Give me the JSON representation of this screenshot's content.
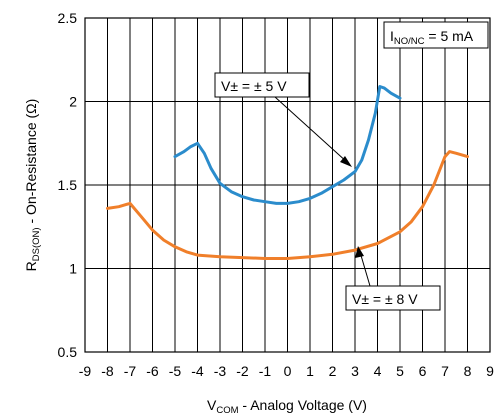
{
  "chart_data": {
    "type": "line",
    "title": "",
    "xlabel": {
      "main": "V",
      "sub": "COM",
      "rest": " - Analog Voltage (V)"
    },
    "ylabel": {
      "main": "R",
      "sub": "DS(ON)",
      "rest": " - On-Resistance (Ω)"
    },
    "xlim": [
      -9,
      9
    ],
    "ylim": [
      0.5,
      2.5
    ],
    "x_ticks": [
      -9,
      -8,
      -7,
      -6,
      -5,
      -4,
      -3,
      -2,
      -1,
      0,
      1,
      2,
      3,
      4,
      5,
      6,
      7,
      8,
      9
    ],
    "x_tick_labels": [
      "-9",
      "-8",
      "-7",
      "-6",
      "-5",
      "-4",
      "-3",
      "-2",
      "-1",
      "0",
      "1",
      "2",
      "3",
      "4",
      "5",
      "6",
      "7",
      "8",
      "9"
    ],
    "y_ticks": [
      0.5,
      1,
      1.5,
      2,
      2.5
    ],
    "y_tick_labels": [
      "0.5",
      "1",
      "1.5",
      "2",
      "2.5"
    ],
    "grid": true,
    "annotation_condition": {
      "main": "I",
      "sub": "NO/NC",
      "rest": " = 5 mA"
    },
    "series": [
      {
        "label": "V± = ± 5 V",
        "color": "#2b8ccc",
        "x": [
          -5,
          -4.6,
          -4.3,
          -4.0,
          -3.7,
          -3.4,
          -3.0,
          -2.5,
          -2.0,
          -1.5,
          -1.0,
          -0.5,
          0.0,
          0.5,
          1.0,
          1.5,
          2.0,
          2.5,
          3.0,
          3.3,
          3.6,
          3.9,
          4.1,
          4.3,
          4.6,
          5.0
        ],
        "y": [
          1.67,
          1.7,
          1.73,
          1.75,
          1.69,
          1.6,
          1.51,
          1.46,
          1.43,
          1.41,
          1.4,
          1.39,
          1.39,
          1.4,
          1.42,
          1.45,
          1.49,
          1.53,
          1.58,
          1.65,
          1.77,
          1.93,
          2.09,
          2.08,
          2.05,
          2.02
        ]
      },
      {
        "label": "V± = ± 8 V",
        "color": "#f07f2a",
        "x": [
          -8,
          -7.5,
          -7.0,
          -6.5,
          -6.0,
          -5.5,
          -5.0,
          -4.5,
          -4.0,
          -3.0,
          -2.0,
          -1.0,
          0.0,
          1.0,
          2.0,
          3.0,
          4.0,
          5.0,
          5.5,
          6.0,
          6.5,
          7.0,
          7.2,
          7.5,
          8.0
        ],
        "y": [
          1.36,
          1.37,
          1.39,
          1.31,
          1.23,
          1.17,
          1.13,
          1.1,
          1.08,
          1.07,
          1.065,
          1.06,
          1.06,
          1.07,
          1.085,
          1.11,
          1.15,
          1.22,
          1.28,
          1.37,
          1.5,
          1.67,
          1.7,
          1.69,
          1.67
        ]
      }
    ]
  }
}
